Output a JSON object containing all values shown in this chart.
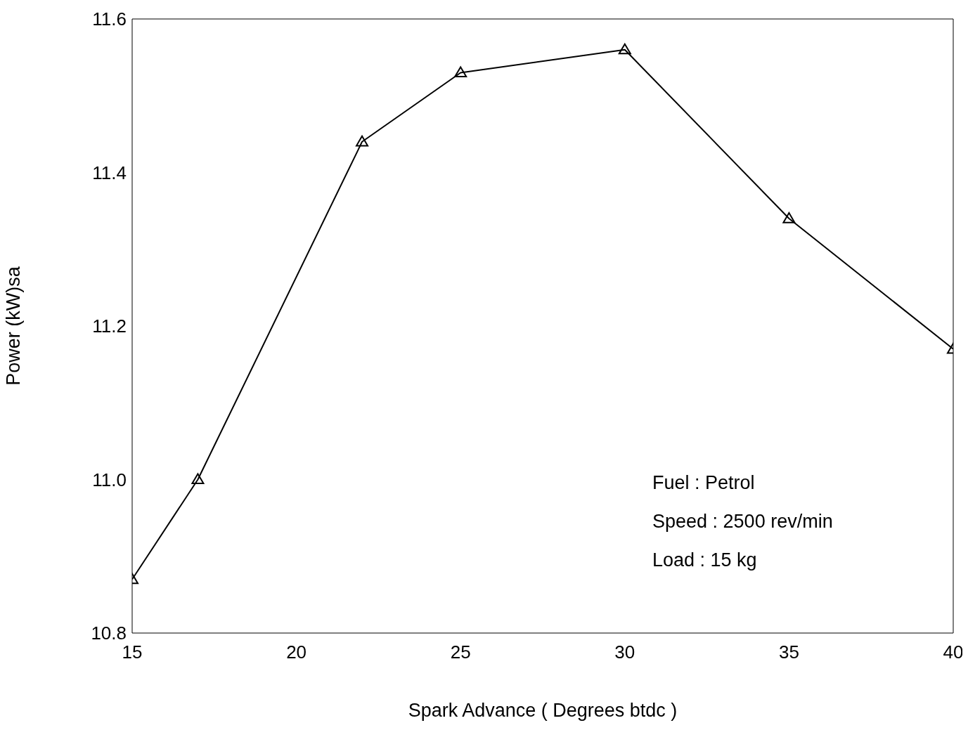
{
  "chart_data": {
    "type": "line",
    "xlabel": "Spark Advance ( Degrees btdc )",
    "ylabel": "Power (kW)sa",
    "x": [
      15,
      17,
      22,
      25,
      30,
      35,
      40
    ],
    "series": [
      {
        "color": "#000000",
        "values": [
          10.87,
          11.0,
          11.44,
          11.53,
          11.56,
          11.34,
          11.17
        ]
      }
    ],
    "xlim": [
      15,
      40
    ],
    "xticks": [
      15,
      20,
      25,
      30,
      35,
      40
    ],
    "ylim": [
      10.8,
      11.6
    ],
    "yticks": [
      10.8,
      {
        "value": 11,
        "label": "11.0"
      },
      11.2,
      11.4,
      11.6
    ],
    "marker": "triangle",
    "line_style": "solid",
    "annotations": [
      "Fuel : Petrol",
      "Speed : 2500 rev/min",
      "Load : 15 kg"
    ]
  }
}
